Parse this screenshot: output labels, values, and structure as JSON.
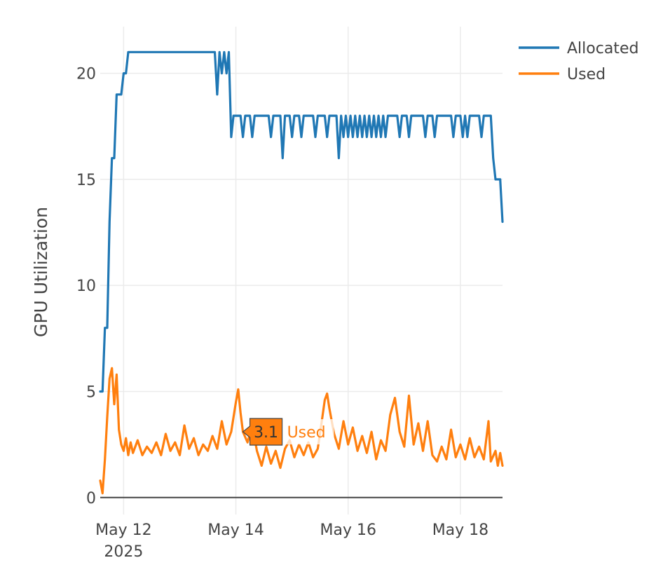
{
  "chart_data": {
    "type": "line",
    "ylabel": "GPU Utilization",
    "xlabel": "",
    "ylim": [
      -0.8,
      22.2
    ],
    "xlim": [
      "2025-05-11 14:00",
      "2025-05-18 18:00"
    ],
    "yticks": [
      0,
      5,
      10,
      15,
      20
    ],
    "xticks": [
      {
        "date": "2025-05-12",
        "label": "May 12",
        "sublabel": "2025"
      },
      {
        "date": "2025-05-14",
        "label": "May 14",
        "sublabel": ""
      },
      {
        "date": "2025-05-16",
        "label": "May 16",
        "sublabel": ""
      },
      {
        "date": "2025-05-18",
        "label": "May 18",
        "sublabel": ""
      }
    ],
    "grid": true,
    "legend_position": "top-right",
    "series": [
      {
        "name": "Allocated",
        "color": "#1f77b4",
        "points": [
          [
            "2025-05-11 14:00",
            5
          ],
          [
            "2025-05-11 15:00",
            5
          ],
          [
            "2025-05-11 16:00",
            8
          ],
          [
            "2025-05-11 17:00",
            8
          ],
          [
            "2025-05-11 18:00",
            13
          ],
          [
            "2025-05-11 19:00",
            16
          ],
          [
            "2025-05-11 20:00",
            16
          ],
          [
            "2025-05-11 21:00",
            19
          ],
          [
            "2025-05-11 23:00",
            19
          ],
          [
            "2025-05-12 00:00",
            20
          ],
          [
            "2025-05-12 01:00",
            20
          ],
          [
            "2025-05-12 02:00",
            21
          ],
          [
            "2025-05-13 15:00",
            21
          ],
          [
            "2025-05-13 16:00",
            19
          ],
          [
            "2025-05-13 17:00",
            21
          ],
          [
            "2025-05-13 18:00",
            20
          ],
          [
            "2025-05-13 19:00",
            21
          ],
          [
            "2025-05-13 20:00",
            20
          ],
          [
            "2025-05-13 21:00",
            21
          ],
          [
            "2025-05-13 22:00",
            17
          ],
          [
            "2025-05-13 23:00",
            18
          ],
          [
            "2025-05-14 02:00",
            18
          ],
          [
            "2025-05-14 03:00",
            17
          ],
          [
            "2025-05-14 04:00",
            18
          ],
          [
            "2025-05-14 06:00",
            18
          ],
          [
            "2025-05-14 07:00",
            17
          ],
          [
            "2025-05-14 08:00",
            18
          ],
          [
            "2025-05-14 14:00",
            18
          ],
          [
            "2025-05-14 15:00",
            17
          ],
          [
            "2025-05-14 16:00",
            18
          ],
          [
            "2025-05-14 19:00",
            18
          ],
          [
            "2025-05-14 20:00",
            16
          ],
          [
            "2025-05-14 21:00",
            18
          ],
          [
            "2025-05-14 23:00",
            18
          ],
          [
            "2025-05-15 00:00",
            17
          ],
          [
            "2025-05-15 01:00",
            18
          ],
          [
            "2025-05-15 03:00",
            18
          ],
          [
            "2025-05-15 04:00",
            17
          ],
          [
            "2025-05-15 05:00",
            18
          ],
          [
            "2025-05-15 09:00",
            18
          ],
          [
            "2025-05-15 10:00",
            17
          ],
          [
            "2025-05-15 11:00",
            18
          ],
          [
            "2025-05-15 14:00",
            18
          ],
          [
            "2025-05-15 15:00",
            17
          ],
          [
            "2025-05-15 16:00",
            18
          ],
          [
            "2025-05-15 19:00",
            18
          ],
          [
            "2025-05-15 20:00",
            16
          ],
          [
            "2025-05-15 21:00",
            18
          ],
          [
            "2025-05-15 22:00",
            17
          ],
          [
            "2025-05-15 23:00",
            18
          ],
          [
            "2025-05-16 00:00",
            17
          ],
          [
            "2025-05-16 01:00",
            18
          ],
          [
            "2025-05-16 02:00",
            17
          ],
          [
            "2025-05-16 03:00",
            18
          ],
          [
            "2025-05-16 04:00",
            17
          ],
          [
            "2025-05-16 05:00",
            18
          ],
          [
            "2025-05-16 06:00",
            17
          ],
          [
            "2025-05-16 07:00",
            18
          ],
          [
            "2025-05-16 08:00",
            17
          ],
          [
            "2025-05-16 09:00",
            18
          ],
          [
            "2025-05-16 10:00",
            17
          ],
          [
            "2025-05-16 11:00",
            18
          ],
          [
            "2025-05-16 12:00",
            17
          ],
          [
            "2025-05-16 13:00",
            18
          ],
          [
            "2025-05-16 14:00",
            17
          ],
          [
            "2025-05-16 15:00",
            18
          ],
          [
            "2025-05-16 16:00",
            17
          ],
          [
            "2025-05-16 17:00",
            18
          ],
          [
            "2025-05-16 21:00",
            18
          ],
          [
            "2025-05-16 22:00",
            17
          ],
          [
            "2025-05-16 23:00",
            18
          ],
          [
            "2025-05-17 01:00",
            18
          ],
          [
            "2025-05-17 02:00",
            17
          ],
          [
            "2025-05-17 03:00",
            18
          ],
          [
            "2025-05-17 08:00",
            18
          ],
          [
            "2025-05-17 09:00",
            17
          ],
          [
            "2025-05-17 10:00",
            18
          ],
          [
            "2025-05-17 12:00",
            18
          ],
          [
            "2025-05-17 13:00",
            17
          ],
          [
            "2025-05-17 14:00",
            18
          ],
          [
            "2025-05-17 20:00",
            18
          ],
          [
            "2025-05-17 21:00",
            17
          ],
          [
            "2025-05-17 22:00",
            18
          ],
          [
            "2025-05-18 00:00",
            18
          ],
          [
            "2025-05-18 01:00",
            17
          ],
          [
            "2025-05-18 02:00",
            18
          ],
          [
            "2025-05-18 03:00",
            17
          ],
          [
            "2025-05-18 04:00",
            18
          ],
          [
            "2025-05-18 08:00",
            18
          ],
          [
            "2025-05-18 09:00",
            17
          ],
          [
            "2025-05-18 10:00",
            18
          ],
          [
            "2025-05-18 13:00",
            18
          ],
          [
            "2025-05-18 14:00",
            16
          ],
          [
            "2025-05-18 15:00",
            15
          ],
          [
            "2025-05-18 17:00",
            15
          ],
          [
            "2025-05-18 18:00",
            13
          ]
        ]
      },
      {
        "name": "Used",
        "color": "#ff7f0e",
        "points": [
          [
            "2025-05-11 14:00",
            0.8
          ],
          [
            "2025-05-11 15:00",
            0.2
          ],
          [
            "2025-05-11 16:00",
            1.8
          ],
          [
            "2025-05-11 17:00",
            3.8
          ],
          [
            "2025-05-11 18:00",
            5.6
          ],
          [
            "2025-05-11 19:00",
            6.1
          ],
          [
            "2025-05-11 20:00",
            4.4
          ],
          [
            "2025-05-11 21:00",
            5.8
          ],
          [
            "2025-05-11 22:00",
            3.2
          ],
          [
            "2025-05-11 23:00",
            2.5
          ],
          [
            "2025-05-12 00:00",
            2.2
          ],
          [
            "2025-05-12 01:00",
            2.8
          ],
          [
            "2025-05-12 02:00",
            2.0
          ],
          [
            "2025-05-12 03:00",
            2.6
          ],
          [
            "2025-05-12 04:00",
            2.1
          ],
          [
            "2025-05-12 06:00",
            2.7
          ],
          [
            "2025-05-12 08:00",
            2.0
          ],
          [
            "2025-05-12 10:00",
            2.4
          ],
          [
            "2025-05-12 12:00",
            2.1
          ],
          [
            "2025-05-12 14:00",
            2.6
          ],
          [
            "2025-05-12 16:00",
            2.0
          ],
          [
            "2025-05-12 18:00",
            3.0
          ],
          [
            "2025-05-12 20:00",
            2.2
          ],
          [
            "2025-05-12 22:00",
            2.6
          ],
          [
            "2025-05-13 00:00",
            2.0
          ],
          [
            "2025-05-13 02:00",
            3.4
          ],
          [
            "2025-05-13 04:00",
            2.3
          ],
          [
            "2025-05-13 06:00",
            2.8
          ],
          [
            "2025-05-13 08:00",
            2.0
          ],
          [
            "2025-05-13 10:00",
            2.5
          ],
          [
            "2025-05-13 12:00",
            2.2
          ],
          [
            "2025-05-13 14:00",
            2.9
          ],
          [
            "2025-05-13 16:00",
            2.3
          ],
          [
            "2025-05-13 18:00",
            3.6
          ],
          [
            "2025-05-13 20:00",
            2.5
          ],
          [
            "2025-05-13 22:00",
            3.1
          ],
          [
            "2025-05-14 00:00",
            4.5
          ],
          [
            "2025-05-14 01:00",
            5.1
          ],
          [
            "2025-05-14 02:00",
            4.0
          ],
          [
            "2025-05-14 03:00",
            3.1
          ],
          [
            "2025-05-14 05:00",
            2.6
          ],
          [
            "2025-05-14 07:00",
            3.4
          ],
          [
            "2025-05-14 09:00",
            2.2
          ],
          [
            "2025-05-14 11:00",
            1.5
          ],
          [
            "2025-05-14 13:00",
            2.4
          ],
          [
            "2025-05-14 15:00",
            1.6
          ],
          [
            "2025-05-14 17:00",
            2.2
          ],
          [
            "2025-05-14 19:00",
            1.4
          ],
          [
            "2025-05-14 21:00",
            2.3
          ],
          [
            "2025-05-14 23:00",
            2.7
          ],
          [
            "2025-05-15 01:00",
            1.9
          ],
          [
            "2025-05-15 03:00",
            2.5
          ],
          [
            "2025-05-15 05:00",
            2.0
          ],
          [
            "2025-05-15 07:00",
            2.6
          ],
          [
            "2025-05-15 09:00",
            1.9
          ],
          [
            "2025-05-15 11:00",
            2.3
          ],
          [
            "2025-05-15 13:00",
            3.8
          ],
          [
            "2025-05-15 14:00",
            4.6
          ],
          [
            "2025-05-15 15:00",
            4.9
          ],
          [
            "2025-05-15 16:00",
            4.2
          ],
          [
            "2025-05-15 18:00",
            3.0
          ],
          [
            "2025-05-15 20:00",
            2.3
          ],
          [
            "2025-05-15 22:00",
            3.6
          ],
          [
            "2025-05-16 00:00",
            2.5
          ],
          [
            "2025-05-16 02:00",
            3.3
          ],
          [
            "2025-05-16 04:00",
            2.2
          ],
          [
            "2025-05-16 06:00",
            2.9
          ],
          [
            "2025-05-16 08:00",
            2.1
          ],
          [
            "2025-05-16 10:00",
            3.1
          ],
          [
            "2025-05-16 12:00",
            1.8
          ],
          [
            "2025-05-16 14:00",
            2.7
          ],
          [
            "2025-05-16 16:00",
            2.2
          ],
          [
            "2025-05-16 18:00",
            3.9
          ],
          [
            "2025-05-16 20:00",
            4.7
          ],
          [
            "2025-05-16 22:00",
            3.1
          ],
          [
            "2025-05-17 00:00",
            2.4
          ],
          [
            "2025-05-17 02:00",
            4.8
          ],
          [
            "2025-05-17 04:00",
            2.5
          ],
          [
            "2025-05-17 06:00",
            3.5
          ],
          [
            "2025-05-17 08:00",
            2.2
          ],
          [
            "2025-05-17 10:00",
            3.6
          ],
          [
            "2025-05-17 12:00",
            2.0
          ],
          [
            "2025-05-17 14:00",
            1.7
          ],
          [
            "2025-05-17 16:00",
            2.4
          ],
          [
            "2025-05-17 18:00",
            1.8
          ],
          [
            "2025-05-17 20:00",
            3.2
          ],
          [
            "2025-05-17 22:00",
            1.9
          ],
          [
            "2025-05-18 00:00",
            2.5
          ],
          [
            "2025-05-18 02:00",
            1.8
          ],
          [
            "2025-05-18 04:00",
            2.8
          ],
          [
            "2025-05-18 06:00",
            1.9
          ],
          [
            "2025-05-18 08:00",
            2.4
          ],
          [
            "2025-05-18 10:00",
            1.8
          ],
          [
            "2025-05-18 12:00",
            3.6
          ],
          [
            "2025-05-18 13:00",
            1.7
          ],
          [
            "2025-05-18 15:00",
            2.2
          ],
          [
            "2025-05-18 16:00",
            1.5
          ],
          [
            "2025-05-18 17:00",
            2.1
          ],
          [
            "2025-05-18 18:00",
            1.5
          ]
        ]
      }
    ],
    "hover": {
      "series": "Used",
      "date": "2025-05-14 03:00",
      "value": 3.1,
      "value_label": "3.1",
      "name_label": "Used"
    }
  }
}
